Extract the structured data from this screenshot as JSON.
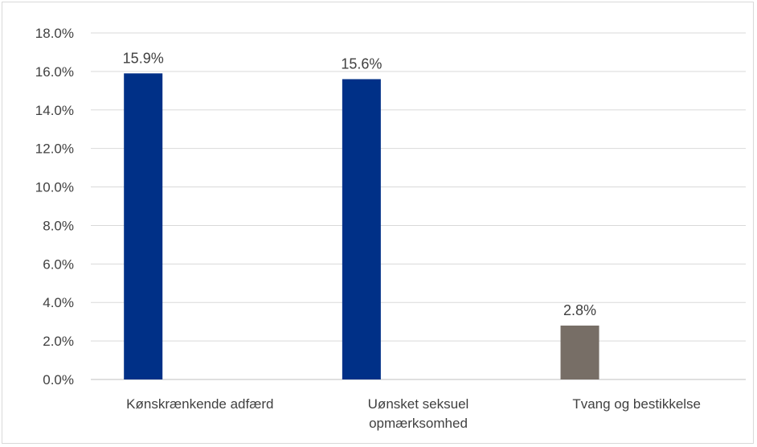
{
  "chart_data": {
    "type": "bar",
    "title": "",
    "xlabel": "",
    "ylabel": "",
    "categories": [
      [
        "Kønskrænkende adfærd"
      ],
      [
        "Uønsket seksuel",
        "opmærksomhed"
      ],
      [
        "Tvang og bestikkelse"
      ]
    ],
    "values": [
      15.9,
      15.6,
      2.8
    ],
    "data_labels": [
      "15.9%",
      "15.6%",
      "2.8%"
    ],
    "bar_colors": [
      "#003087",
      "#003087",
      "#776e66"
    ],
    "ylim": [
      0,
      18
    ],
    "yticks": [
      0,
      2,
      4,
      6,
      8,
      10,
      12,
      14,
      16,
      18
    ],
    "ytick_labels": [
      "0.0%",
      "2.0%",
      "4.0%",
      "6.0%",
      "8.0%",
      "10.0%",
      "12.0%",
      "14.0%",
      "16.0%",
      "18.0%"
    ],
    "grid": true,
    "legend": "none"
  }
}
